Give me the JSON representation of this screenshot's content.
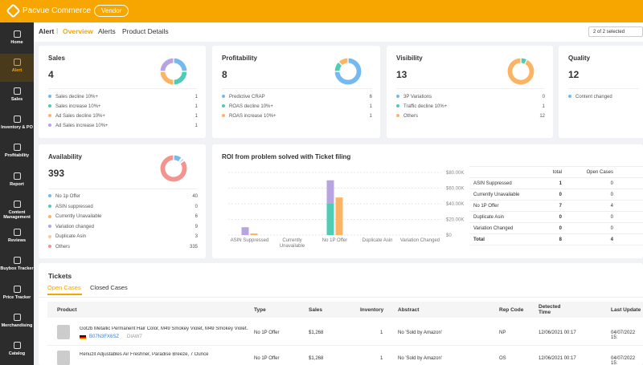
{
  "brand": "Pacvue Commerce",
  "badge": "Vendor",
  "nav": [
    "Home",
    "Alert",
    "Sales",
    "Inventory & PO",
    "Profitability",
    "Report",
    "Content Management",
    "Reviews",
    "Buybox Tracker",
    "Price Tracker",
    "Merchandising",
    "Catalog"
  ],
  "breadcrumb": "Alert",
  "tabs": [
    "Overview",
    "Alerts",
    "Product Details"
  ],
  "selector": "2 of 2 selected",
  "cards": [
    {
      "title": "Sales",
      "total": 4,
      "items": [
        {
          "label": "Sales decline 10%+",
          "value": 1,
          "color": "#74b9f0"
        },
        {
          "label": "Sales increase 10%+",
          "value": 1,
          "color": "#4ecdb4"
        },
        {
          "label": "Ad Sales decline 10%+",
          "value": 1,
          "color": "#fbb463"
        },
        {
          "label": "Ad Sales increase 10%+",
          "value": 1,
          "color": "#b8a4e0"
        }
      ]
    },
    {
      "title": "Profitability",
      "total": 8,
      "items": [
        {
          "label": "Predictive CRAP",
          "value": 6,
          "color": "#74b9f0"
        },
        {
          "label": "ROAS decline 10%+",
          "value": 1,
          "color": "#4ecdb4"
        },
        {
          "label": "ROAS increase 10%+",
          "value": 1,
          "color": "#fbb463"
        }
      ]
    },
    {
      "title": "Visibility",
      "total": 13,
      "items": [
        {
          "label": "3P Variations",
          "value": 0,
          "color": "#74b9f0"
        },
        {
          "label": "Traffic decline 10%+",
          "value": 1,
          "color": "#4ecdb4"
        },
        {
          "label": "Others",
          "value": 12,
          "color": "#fbb463"
        }
      ]
    },
    {
      "title": "Quality",
      "total": 12,
      "items": [
        {
          "label": "Content changed",
          "color": "#74b9f0"
        }
      ]
    },
    {
      "title": "Availability",
      "total": 393,
      "items": [
        {
          "label": "No 1p Offer",
          "value": 40,
          "color": "#74b9f0"
        },
        {
          "label": "ASIN suppressed",
          "value": 0,
          "color": "#4ecdb4"
        },
        {
          "label": "Currently Unavailable",
          "value": 6,
          "color": "#fbb463"
        },
        {
          "label": "Variation changed",
          "value": 9,
          "color": "#b8a4e0"
        },
        {
          "label": "Duplicate Asin",
          "value": 3,
          "color": "#f9c8a0"
        },
        {
          "label": "Others",
          "value": 335,
          "color": "#f4948e"
        }
      ]
    }
  ],
  "chart_data": {
    "type": "bar",
    "title": "ROI from problem solved with Ticket filing",
    "categories": [
      "ASIN Suppressed",
      "Currently Unavailable",
      "No 1P Offer",
      "Duplicate Asin",
      "Variation Changed"
    ],
    "ylim": [
      0,
      8
    ],
    "series": [
      {
        "color": "#4ecdb4",
        "values": [
          0,
          0,
          4,
          0,
          0
        ],
        "stack": true
      },
      {
        "color": "#b8a4e0",
        "values": [
          1,
          0,
          3,
          0,
          0
        ],
        "stack": true
      },
      {
        "color": "#fbb463",
        "values": [
          2000,
          0,
          48000,
          0,
          0
        ],
        "axis": "y2"
      }
    ],
    "y2lim": [
      0,
      80000
    ],
    "y2ticks": [
      {
        "value": 0,
        "label": "$0"
      },
      {
        "value": 20000,
        "label": "$20.00K"
      },
      {
        "value": 40000,
        "label": "$40.00K"
      },
      {
        "value": 60000,
        "label": "$60.00K"
      },
      {
        "value": 80000,
        "label": "$80.00K"
      }
    ],
    "grid": true
  },
  "roi_table": {
    "columns": [
      "total",
      "Open Cases"
    ],
    "rows": [
      {
        "label": "ASIN Suppressed",
        "values": [
          1,
          0
        ]
      },
      {
        "label": "Currently Unavailable",
        "values": [
          0,
          0
        ]
      },
      {
        "label": "No 1P Offer",
        "values": [
          7,
          4
        ]
      },
      {
        "label": "Duplicate Asin",
        "values": [
          0,
          0
        ]
      },
      {
        "label": "Variation Changed",
        "values": [
          0,
          0
        ]
      },
      {
        "label": "Total",
        "values": [
          8,
          4
        ]
      }
    ]
  },
  "tickets": {
    "title": "Tickets",
    "tabs": [
      "Open Cases",
      "Closed Cases"
    ],
    "columns": [
      "Product",
      "Type",
      "Sales",
      "Inventory",
      "Abstract",
      "Rep Code",
      "Detected Time",
      "Last Update"
    ],
    "rows": [
      {
        "product": "Got2b Metallic Permanent Hair Color, M49 Smokey Violet, M49 Smokey Violet...",
        "asin": "B07N3FX6SZ",
        "code": "DIAW7",
        "cells": [
          "No 1P Offer",
          "$1,268",
          "1",
          "No 'Sold by Amazon'",
          "NP",
          "12/06/2021 00:17",
          "04/07/2022 15:"
        ]
      },
      {
        "product": "Renuzit Adjustables Air Freshner, Paradise Breeze, 7 Ounce",
        "cells": [
          "No 1P Offer",
          "$1,268",
          "1",
          "No 'Sold by Amazon'",
          "OS",
          "12/06/2021 00:17",
          "04/07/2022 15:"
        ]
      }
    ]
  }
}
